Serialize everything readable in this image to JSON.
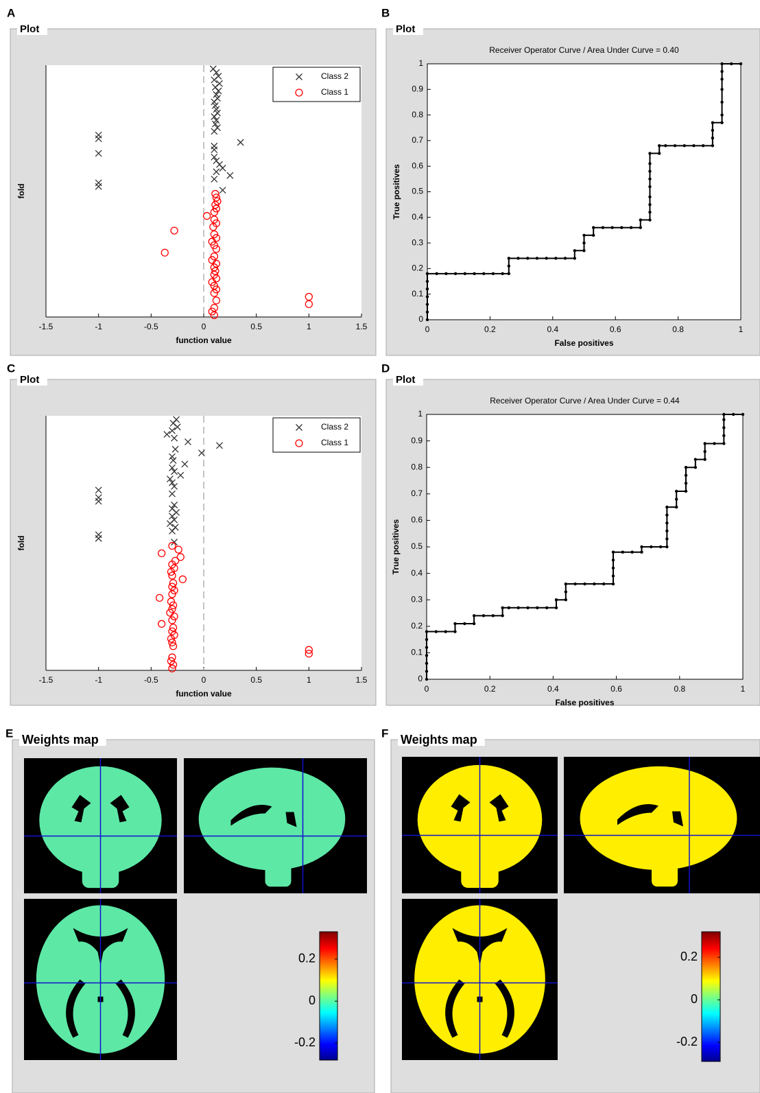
{
  "chart_data": [
    {
      "type": "scatter",
      "panel": "A",
      "frame_title": "Plot",
      "xlabel": "function value",
      "ylabel": "fold",
      "xlim": [
        -1.5,
        1.5
      ],
      "xticks": [
        -1.5,
        -1,
        -0.5,
        0,
        0.5,
        1,
        1.5
      ],
      "ylim": [
        0.5,
        69
      ],
      "reference_line_x": 0,
      "legend": "upper right",
      "series": [
        {
          "name": "Class 2",
          "color": "#333333",
          "marker": "x",
          "x": [
            0.18,
            -1,
            -1,
            0.1,
            0.25,
            0.12,
            0.18,
            0.15,
            0.12,
            0.1,
            -1,
            0.1,
            0.1,
            0.35,
            -1,
            -1,
            0.1,
            0.13,
            0.11,
            0.12,
            0.1,
            0.13,
            0.12,
            0.11,
            0.1,
            0.13,
            0.12,
            0.14,
            0.11,
            0.15,
            0.1,
            0.14,
            0.12,
            0.09
          ],
          "y": [
            35,
            36,
            37,
            38,
            39,
            40,
            41,
            42,
            43,
            44,
            45,
            46,
            47,
            48,
            49,
            50,
            51,
            52,
            53,
            54,
            55,
            56,
            57,
            58,
            59,
            60,
            61,
            62,
            63,
            64,
            65,
            66,
            67,
            68
          ]
        },
        {
          "name": "Class 1",
          "color": "#ff0000",
          "marker": "o",
          "x": [
            0.1,
            0.08,
            0.1,
            1,
            0.12,
            1,
            0.1,
            0.12,
            0.1,
            0.08,
            0.12,
            0.1,
            0.11,
            0.1,
            0.12,
            0.08,
            0.1,
            -0.37,
            0.12,
            0.1,
            0.08,
            0.12,
            0.1,
            -0.28,
            0.09,
            0.12,
            0.1,
            0.03,
            0.1,
            0.12,
            0.11,
            0.13,
            0.12,
            0.11
          ],
          "y": [
            1,
            2,
            3,
            4,
            5,
            6,
            7,
            8,
            9,
            10,
            11,
            12,
            13,
            14,
            15,
            16,
            17,
            18,
            19,
            20,
            21,
            22,
            23,
            24,
            25,
            26,
            27,
            28,
            29,
            30,
            31,
            32,
            33,
            34
          ]
        }
      ]
    },
    {
      "type": "line",
      "panel": "B",
      "frame_title": "Plot",
      "title": "Receiver Operator Curve / Area Under Curve = 0.40",
      "xlabel": "False positives",
      "ylabel": "True positives",
      "xlim": [
        0,
        1
      ],
      "ylim": [
        0,
        1
      ],
      "xticks": [
        0,
        0.2,
        0.4,
        0.6,
        0.8,
        1
      ],
      "yticks": [
        0,
        0.1,
        0.2,
        0.3,
        0.4,
        0.5,
        0.6,
        0.7,
        0.8,
        0.9,
        1
      ],
      "color": "#000000",
      "x": [
        0,
        0,
        0,
        0,
        0,
        0,
        0,
        0.03,
        0.06,
        0.09,
        0.12,
        0.15,
        0.18,
        0.21,
        0.24,
        0.26,
        0.26,
        0.26,
        0.29,
        0.32,
        0.35,
        0.38,
        0.41,
        0.44,
        0.47,
        0.47,
        0.5,
        0.5,
        0.5,
        0.53,
        0.53,
        0.56,
        0.59,
        0.62,
        0.65,
        0.68,
        0.68,
        0.71,
        0.71,
        0.71,
        0.71,
        0.71,
        0.71,
        0.71,
        0.71,
        0.71,
        0.74,
        0.74,
        0.76,
        0.79,
        0.82,
        0.85,
        0.88,
        0.91,
        0.91,
        0.91,
        0.91,
        0.94,
        0.94,
        0.94,
        0.94,
        0.94,
        0.94,
        0.94,
        0.97,
        1
      ],
      "y": [
        0,
        0.03,
        0.06,
        0.09,
        0.12,
        0.15,
        0.18,
        0.18,
        0.18,
        0.18,
        0.18,
        0.18,
        0.18,
        0.18,
        0.18,
        0.18,
        0.21,
        0.24,
        0.24,
        0.24,
        0.24,
        0.24,
        0.24,
        0.24,
        0.24,
        0.27,
        0.27,
        0.3,
        0.33,
        0.33,
        0.36,
        0.36,
        0.36,
        0.36,
        0.36,
        0.36,
        0.39,
        0.39,
        0.42,
        0.45,
        0.48,
        0.52,
        0.55,
        0.58,
        0.61,
        0.65,
        0.65,
        0.68,
        0.68,
        0.68,
        0.68,
        0.68,
        0.68,
        0.68,
        0.71,
        0.74,
        0.77,
        0.77,
        0.8,
        0.85,
        0.9,
        0.94,
        0.97,
        1,
        1,
        1
      ]
    },
    {
      "type": "scatter",
      "panel": "C",
      "frame_title": "Plot",
      "xlabel": "function value",
      "ylabel": "fold",
      "xlim": [
        -1.5,
        1.5
      ],
      "xticks": [
        -1.5,
        -1,
        -0.5,
        0,
        0.5,
        1,
        1.5
      ],
      "ylim": [
        0.5,
        69
      ],
      "reference_line_x": 0,
      "legend": "upper right",
      "series": [
        {
          "name": "Class 2",
          "color": "#333333",
          "marker": "x",
          "x": [
            -0.28,
            -1,
            -1,
            -0.3,
            -0.27,
            -0.32,
            -0.28,
            -0.3,
            -0.26,
            -0.3,
            -0.28,
            -1,
            -1,
            -0.3,
            -1,
            -0.28,
            -0.3,
            -0.32,
            -0.22,
            -0.28,
            -0.3,
            -0.18,
            -0.29,
            -0.3,
            -0.02,
            -0.27,
            0.15,
            -0.15,
            -0.28,
            -0.35,
            -0.3,
            -0.25,
            -0.29,
            -0.26
          ],
          "y": [
            35,
            36,
            37,
            38,
            39,
            40,
            41,
            42,
            43,
            44,
            45,
            46,
            47,
            48,
            49,
            50,
            51,
            52,
            53,
            54,
            55,
            56,
            57,
            58,
            59,
            60,
            61,
            62,
            63,
            64,
            65,
            66,
            67,
            68
          ]
        },
        {
          "name": "Class 1",
          "color": "#ff0000",
          "marker": "o",
          "x": [
            -0.3,
            -0.29,
            -0.31,
            -0.3,
            1,
            1,
            -0.29,
            -0.3,
            -0.31,
            -0.28,
            -0.3,
            -0.29,
            -0.4,
            -0.3,
            -0.28,
            -0.32,
            -0.3,
            -0.29,
            -0.31,
            -0.42,
            -0.3,
            -0.28,
            -0.3,
            -0.29,
            -0.2,
            -0.3,
            -0.31,
            -0.28,
            -0.3,
            -0.27,
            -0.22,
            -0.4,
            -0.24,
            -0.3
          ],
          "y": [
            1,
            2,
            3,
            4,
            5,
            6,
            7,
            8,
            9,
            10,
            11,
            12,
            13,
            14,
            15,
            16,
            17,
            18,
            19,
            20,
            21,
            22,
            23,
            24,
            25,
            26,
            27,
            28,
            29,
            30,
            31,
            32,
            33,
            34
          ]
        }
      ]
    },
    {
      "type": "line",
      "panel": "D",
      "frame_title": "Plot",
      "title": "Receiver Operator Curve / Area Under Curve = 0.44",
      "xlabel": "False positives",
      "ylabel": "True positives",
      "xlim": [
        0,
        1
      ],
      "ylim": [
        0,
        1
      ],
      "xticks": [
        0,
        0.2,
        0.4,
        0.6,
        0.8,
        1
      ],
      "yticks": [
        0,
        0.1,
        0.2,
        0.3,
        0.4,
        0.5,
        0.6,
        0.7,
        0.8,
        0.9,
        1
      ],
      "color": "#000000",
      "x": [
        0,
        0,
        0,
        0,
        0,
        0,
        0,
        0.03,
        0.06,
        0.09,
        0.09,
        0.12,
        0.15,
        0.15,
        0.18,
        0.21,
        0.24,
        0.24,
        0.26,
        0.29,
        0.32,
        0.35,
        0.38,
        0.41,
        0.41,
        0.44,
        0.44,
        0.44,
        0.47,
        0.5,
        0.53,
        0.56,
        0.59,
        0.59,
        0.59,
        0.59,
        0.59,
        0.62,
        0.65,
        0.68,
        0.68,
        0.71,
        0.74,
        0.76,
        0.76,
        0.76,
        0.76,
        0.76,
        0.76,
        0.79,
        0.79,
        0.79,
        0.82,
        0.82,
        0.82,
        0.82,
        0.85,
        0.85,
        0.88,
        0.88,
        0.88,
        0.91,
        0.94,
        0.94,
        0.94,
        0.94,
        0.94,
        0.97,
        1
      ],
      "y": [
        0,
        0.03,
        0.06,
        0.09,
        0.12,
        0.15,
        0.18,
        0.18,
        0.18,
        0.18,
        0.21,
        0.21,
        0.21,
        0.24,
        0.24,
        0.24,
        0.24,
        0.27,
        0.27,
        0.27,
        0.27,
        0.27,
        0.27,
        0.27,
        0.3,
        0.3,
        0.33,
        0.36,
        0.36,
        0.36,
        0.36,
        0.36,
        0.36,
        0.39,
        0.42,
        0.45,
        0.48,
        0.48,
        0.48,
        0.48,
        0.5,
        0.5,
        0.5,
        0.5,
        0.53,
        0.56,
        0.59,
        0.62,
        0.65,
        0.65,
        0.68,
        0.71,
        0.71,
        0.74,
        0.77,
        0.8,
        0.8,
        0.83,
        0.83,
        0.86,
        0.89,
        0.89,
        0.89,
        0.92,
        0.95,
        0.98,
        1,
        1,
        1
      ]
    }
  ],
  "weights_maps": [
    {
      "panel": "E",
      "title": "Weights map",
      "map_color": "#5de8a6",
      "colorbar": {
        "lim": [
          -0.28,
          0.33
        ],
        "ticks": [
          0.2,
          0,
          -0.2
        ]
      }
    },
    {
      "panel": "F",
      "title": "Weights map",
      "map_color": "#ffee00",
      "colorbar": {
        "lim": [
          -0.29,
          0.32
        ],
        "ticks": [
          0.2,
          0,
          -0.2
        ]
      }
    }
  ]
}
